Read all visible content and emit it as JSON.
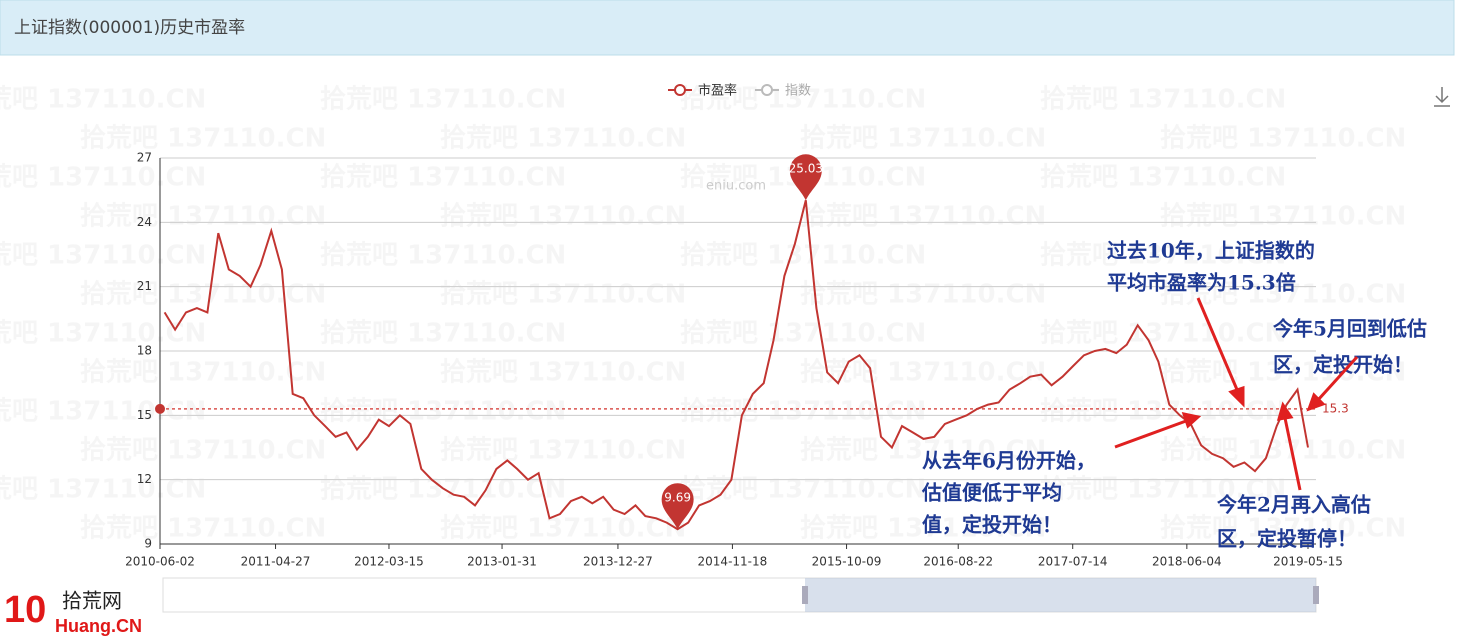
{
  "chart_data": {
    "type": "line",
    "title": "上证指数(000001)历史市盈率",
    "legend": [
      {
        "name": "市盈率",
        "color": "#c23531"
      },
      {
        "name": "指数",
        "color": "#bbbbbb"
      }
    ],
    "watermark": "eniu.com",
    "background_watermark": "拾荒吧 137110.CN",
    "x": [
      "2010-06",
      "2010-07",
      "2010-08",
      "2010-09",
      "2010-10",
      "2010-11",
      "2010-12",
      "2011-01",
      "2011-02",
      "2011-03",
      "2011-04",
      "2011-05",
      "2011-06",
      "2011-07",
      "2011-08",
      "2011-09",
      "2011-10",
      "2011-11",
      "2011-12",
      "2012-01",
      "2012-02",
      "2012-03",
      "2012-04",
      "2012-05",
      "2012-06",
      "2012-07",
      "2012-08",
      "2012-09",
      "2012-10",
      "2012-11",
      "2012-12",
      "2013-01",
      "2013-02",
      "2013-03",
      "2013-04",
      "2013-05",
      "2013-06",
      "2013-07",
      "2013-08",
      "2013-09",
      "2013-10",
      "2013-11",
      "2013-12",
      "2014-01",
      "2014-02",
      "2014-03",
      "2014-04",
      "2014-05",
      "2014-06",
      "2014-07",
      "2014-08",
      "2014-09",
      "2014-10",
      "2014-11",
      "2014-12",
      "2015-01",
      "2015-02",
      "2015-03",
      "2015-04",
      "2015-05",
      "2015-06",
      "2015-07",
      "2015-08",
      "2015-09",
      "2015-10",
      "2015-11",
      "2015-12",
      "2016-01",
      "2016-02",
      "2016-03",
      "2016-04",
      "2016-05",
      "2016-06",
      "2016-07",
      "2016-08",
      "2016-09",
      "2016-10",
      "2016-11",
      "2016-12",
      "2017-01",
      "2017-02",
      "2017-03",
      "2017-04",
      "2017-05",
      "2017-06",
      "2017-07",
      "2017-08",
      "2017-09",
      "2017-10",
      "2017-11",
      "2017-12",
      "2018-01",
      "2018-02",
      "2018-03",
      "2018-04",
      "2018-05",
      "2018-06",
      "2018-07",
      "2018-08",
      "2018-09",
      "2018-10",
      "2018-11",
      "2018-12",
      "2019-01",
      "2019-02",
      "2019-03",
      "2019-04",
      "2019-05"
    ],
    "series": [
      {
        "name": "市盈率",
        "color": "#c23531",
        "values": [
          19.8,
          19.0,
          19.8,
          20.0,
          19.8,
          23.5,
          21.8,
          21.5,
          21.0,
          22.0,
          23.6,
          21.8,
          16.0,
          15.8,
          15.0,
          14.5,
          14.0,
          14.2,
          13.4,
          14.0,
          14.8,
          14.5,
          15.0,
          14.6,
          12.5,
          12.0,
          11.6,
          11.3,
          11.2,
          10.8,
          11.5,
          12.5,
          12.9,
          12.5,
          12.0,
          12.3,
          10.2,
          10.4,
          11.0,
          11.2,
          10.9,
          11.2,
          10.6,
          10.4,
          10.8,
          10.3,
          10.2,
          10.0,
          9.69,
          10.0,
          10.8,
          11.0,
          11.3,
          12.0,
          15.0,
          16.0,
          16.5,
          18.5,
          21.5,
          23.0,
          25.03,
          20.0,
          17.0,
          16.5,
          17.5,
          17.8,
          17.2,
          14.0,
          13.5,
          14.5,
          14.2,
          13.9,
          14.0,
          14.6,
          14.8,
          15.0,
          15.3,
          15.5,
          15.6,
          16.2,
          16.5,
          16.8,
          16.9,
          16.4,
          16.8,
          17.3,
          17.8,
          18.0,
          18.1,
          17.9,
          18.3,
          19.2,
          18.5,
          17.5,
          15.5,
          15.0,
          14.6,
          13.6,
          13.2,
          13.0,
          12.6,
          12.8,
          12.4,
          13.0,
          14.5,
          15.5,
          16.2,
          13.5
        ]
      }
    ],
    "mark_points": [
      "max",
      "min"
    ],
    "mark_line": 15.3,
    "xlim": [
      "2010-06-02",
      "2019-05-15"
    ],
    "xticks": [
      "2010-06-02",
      "2011-04-27",
      "2012-03-15",
      "2013-01-31",
      "2013-12-27",
      "2014-11-18",
      "2015-10-09",
      "2016-08-22",
      "2017-07-14",
      "2018-06-04",
      "2019-05-15"
    ],
    "ylim": [
      9,
      27
    ],
    "yticks": [
      9,
      12,
      15,
      18,
      21,
      24,
      27
    ],
    "grid": true,
    "annotations": [
      {
        "lines": [
          "过去10年，上证指数的",
          "平均市盈率为15.3倍"
        ]
      },
      {
        "lines": [
          "今年5月回到低估",
          "区，定投开始！"
        ]
      },
      {
        "lines": [
          "从去年6月份开始，",
          "估值便低于平均",
          "值，定投开始！"
        ]
      },
      {
        "lines": [
          "今年2月再入高估",
          "区，定投暂停！"
        ]
      }
    ],
    "logo": {
      "number": "10",
      "name": "拾荒网",
      "site": "Huang.CN"
    }
  }
}
